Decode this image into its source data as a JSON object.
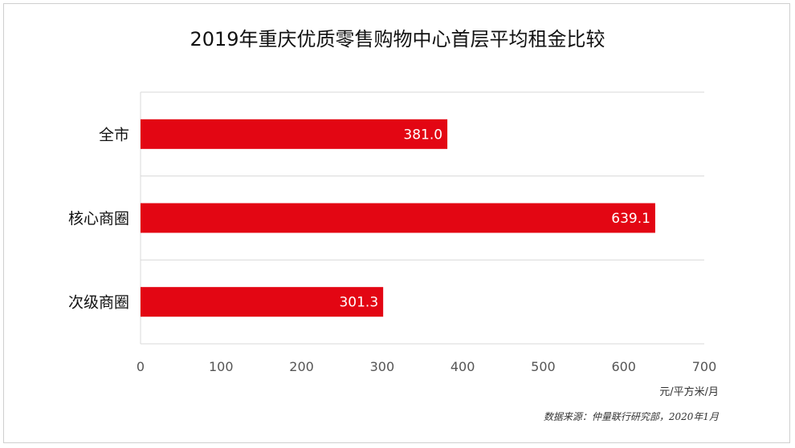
{
  "chart_data": {
    "type": "bar",
    "orientation": "horizontal",
    "title": "2019年重庆优质零售购物中心首层平均租金比较",
    "categories": [
      "全市",
      "核心商圈",
      "次级商圈"
    ],
    "values": [
      381.0,
      639.1,
      301.3
    ],
    "value_labels": [
      "381.0",
      "639.1",
      "301.3"
    ],
    "xlim": [
      0,
      700
    ],
    "x_ticks": [
      "0",
      "100",
      "200",
      "300",
      "400",
      "500",
      "600",
      "700"
    ],
    "unit": "元/平方米/月",
    "grid": true,
    "bar_color": "#e30613"
  },
  "source": "数据来源：仲量联行研究部，2020年1月"
}
